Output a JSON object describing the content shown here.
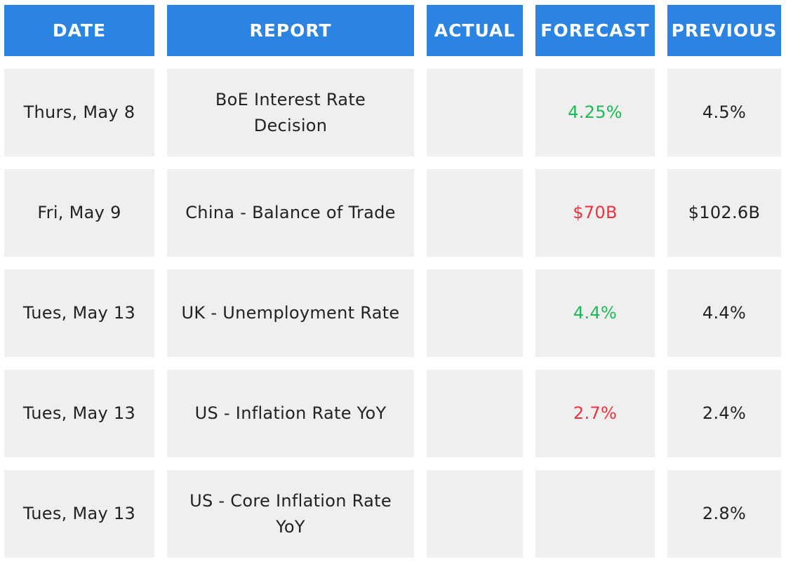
{
  "header": {
    "date": "DATE",
    "report": "REPORT",
    "actual": "ACTUAL",
    "forecast": "FORECAST",
    "previous": "PREVIOUS"
  },
  "rows": [
    {
      "date": "Thurs, May 8",
      "report": "BoE Interest Rate Decision",
      "actual": "",
      "forecast": "4.25%",
      "forecast_trend": "up",
      "previous": "4.5%"
    },
    {
      "date": "Fri, May 9",
      "report": "China - Balance of Trade",
      "actual": "",
      "forecast": "$70B",
      "forecast_trend": "down",
      "previous": "$102.6B"
    },
    {
      "date": "Tues, May 13",
      "report": "UK - Unemployment Rate",
      "actual": "",
      "forecast": "4.4%",
      "forecast_trend": "up",
      "previous": "4.4%"
    },
    {
      "date": "Tues, May 13",
      "report": "US - Inflation Rate YoY",
      "actual": "",
      "forecast": "2.7%",
      "forecast_trend": "down",
      "previous": "2.4%"
    },
    {
      "date": "Tues, May 13",
      "report": "US - Core Inflation Rate YoY",
      "actual": "",
      "forecast": "",
      "forecast_trend": "",
      "previous": "2.8%"
    }
  ],
  "colors": {
    "header_bg": "#2b84e2",
    "cell_bg": "#efefef",
    "up": "#1db954",
    "down": "#f0313c"
  }
}
